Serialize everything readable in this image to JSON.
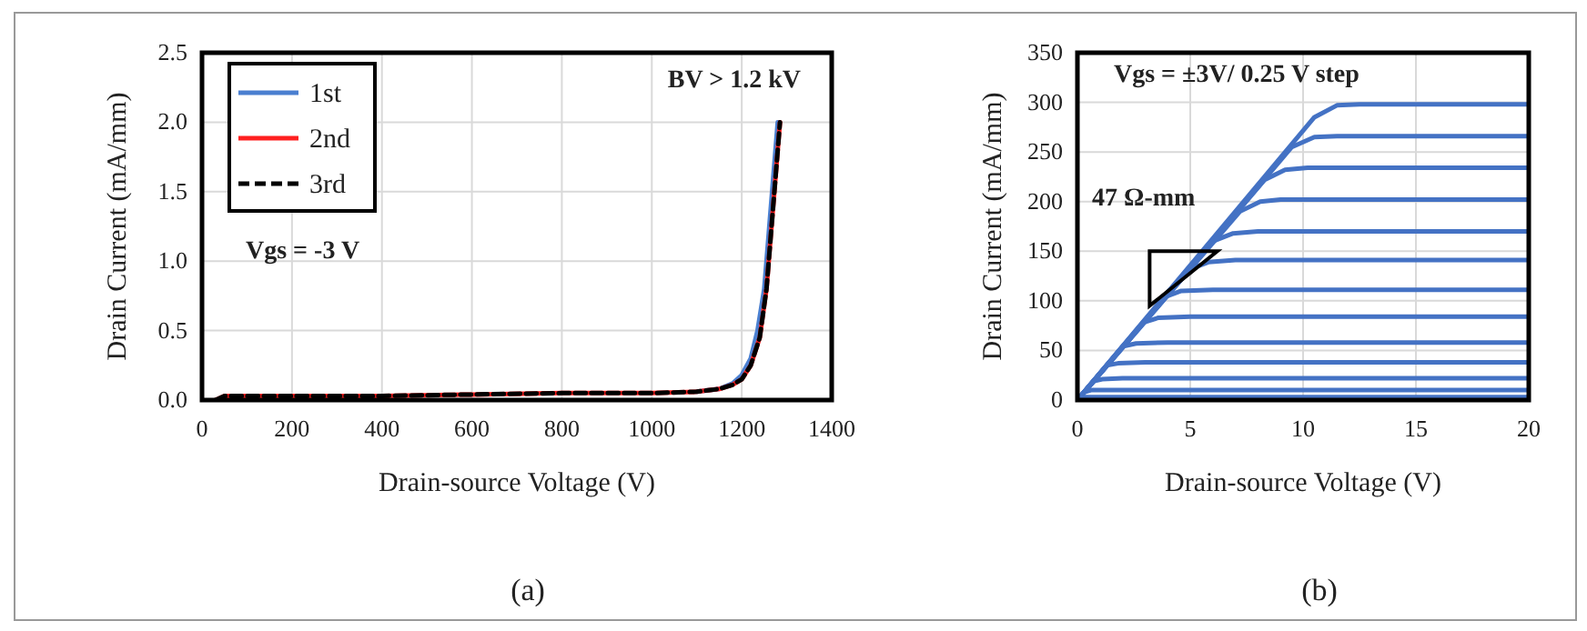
{
  "chart_data": [
    {
      "type": "line",
      "xlabel": "Drain-source Voltage (V)",
      "ylabel": "Drain Current (mA/mm)",
      "xlim": [
        0,
        1400
      ],
      "xticks": [
        0,
        200,
        400,
        600,
        800,
        1000,
        1200,
        1400
      ],
      "ylim": [
        0,
        2.5
      ],
      "yticks": [
        {
          "value": 0,
          "label": "0.0"
        },
        {
          "value": 0.5,
          "label": "0.5"
        },
        {
          "value": 1,
          "label": "1.0"
        },
        {
          "value": 1.5,
          "label": "1.5"
        },
        {
          "value": 2,
          "label": "2.0"
        },
        {
          "value": 2.5,
          "label": "2.5"
        }
      ],
      "grid": true,
      "legend": "top left",
      "annotations": [
        "BV > 1.2 kV",
        "Vgs = -3 V",
        "(a)"
      ],
      "series": [
        {
          "name": "1st",
          "color": "#4a7fd0",
          "x": [
            1100,
            1150,
            1180,
            1200,
            1220,
            1235,
            1250,
            1260,
            1270,
            1280
          ],
          "values": [
            0.06,
            0.08,
            0.12,
            0.18,
            0.3,
            0.5,
            0.8,
            1.2,
            1.6,
            2.0
          ]
        },
        {
          "name": "2nd",
          "color": "#ff2020",
          "x": [
            30,
            50,
            200,
            400,
            600,
            800,
            1000,
            1100,
            1150,
            1180,
            1200,
            1220,
            1240,
            1255,
            1265,
            1275,
            1285
          ],
          "values": [
            0,
            0.03,
            0.03,
            0.03,
            0.04,
            0.05,
            0.05,
            0.06,
            0.08,
            0.11,
            0.15,
            0.25,
            0.45,
            0.8,
            1.2,
            1.6,
            2.0
          ]
        },
        {
          "name": "3rd",
          "color": "#000000",
          "line_style": "dashed",
          "x": [
            30,
            50,
            200,
            400,
            600,
            800,
            1000,
            1100,
            1150,
            1180,
            1200,
            1220,
            1240,
            1255,
            1265,
            1275,
            1285
          ],
          "values": [
            0,
            0.03,
            0.03,
            0.03,
            0.04,
            0.05,
            0.05,
            0.06,
            0.08,
            0.11,
            0.15,
            0.25,
            0.45,
            0.8,
            1.2,
            1.6,
            2.0
          ]
        }
      ]
    },
    {
      "type": "line",
      "xlabel": "Drain-source Voltage (V)",
      "ylabel": "Drain Current (mA/mm)",
      "xlim": [
        0,
        20
      ],
      "xticks": [
        0,
        5,
        10,
        15,
        20
      ],
      "ylim": [
        0,
        350
      ],
      "yticks": [
        0,
        50,
        100,
        150,
        200,
        250,
        300,
        350
      ],
      "grid": true,
      "annotations": [
        "Vgs = ±3V/ 0.25 V step",
        "47 Ω-mm",
        "(b)"
      ],
      "series": [
        {
          "color": "#4472c4",
          "x": [
            0,
            10.5,
            11.5,
            12.5,
            20
          ],
          "values": [
            0,
            285,
            297,
            298,
            298
          ]
        },
        {
          "color": "#4472c4",
          "x": [
            0,
            9.5,
            10.5,
            11.5,
            20
          ],
          "values": [
            0,
            255,
            265,
            266,
            266
          ]
        },
        {
          "color": "#4472c4",
          "x": [
            0,
            8.3,
            9.2,
            10.2,
            20
          ],
          "values": [
            0,
            222,
            232,
            234,
            234
          ]
        },
        {
          "color": "#4472c4",
          "x": [
            0,
            7.2,
            8.1,
            9,
            20
          ],
          "values": [
            0,
            190,
            200,
            202,
            202
          ]
        },
        {
          "color": "#4472c4",
          "x": [
            0,
            6,
            6.9,
            8,
            20
          ],
          "values": [
            0,
            160,
            168,
            170,
            170
          ]
        },
        {
          "color": "#4472c4",
          "x": [
            0,
            5,
            5.8,
            7,
            20
          ],
          "values": [
            0,
            132,
            139,
            141,
            141
          ]
        },
        {
          "color": "#4472c4",
          "x": [
            0,
            3.9,
            4.6,
            6,
            20
          ],
          "values": [
            0,
            104,
            110,
            111,
            111
          ]
        },
        {
          "color": "#4472c4",
          "x": [
            0,
            2.9,
            3.6,
            5,
            20
          ],
          "values": [
            0,
            78,
            83,
            84,
            84
          ]
        },
        {
          "color": "#4472c4",
          "x": [
            0,
            2,
            2.6,
            4,
            20
          ],
          "values": [
            0,
            54,
            57,
            58,
            58
          ]
        },
        {
          "color": "#4472c4",
          "x": [
            0,
            1.3,
            1.8,
            3,
            20
          ],
          "values": [
            0,
            35,
            37,
            38,
            38
          ]
        },
        {
          "color": "#4472c4",
          "x": [
            0,
            0.7,
            1.1,
            2,
            20
          ],
          "values": [
            0,
            19,
            21,
            22,
            22
          ]
        },
        {
          "color": "#4472c4",
          "x": [
            0,
            0.3,
            0.6,
            1.2,
            20
          ],
          "values": [
            0,
            8,
            10,
            10,
            10
          ]
        },
        {
          "color": "#4472c4",
          "x": [
            0,
            0.1,
            0.3,
            20
          ],
          "values": [
            0,
            2,
            3,
            3
          ]
        },
        {
          "color": "#4472c4",
          "x": [
            0,
            20
          ],
          "values": [
            0,
            0
          ]
        }
      ]
    }
  ]
}
